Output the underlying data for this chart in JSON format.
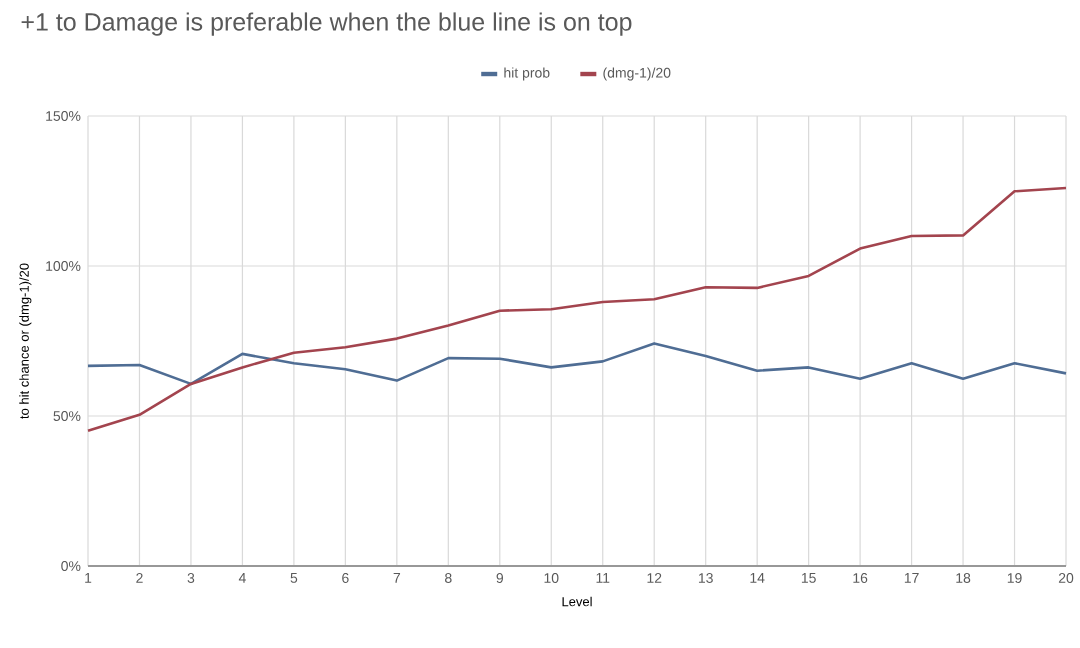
{
  "chart_data": {
    "type": "line",
    "title": "+1 to Damage is preferable when the blue line is on top",
    "xlabel": "Level",
    "ylabel": "to hit chance or (dmg-1)/20",
    "x": [
      1,
      2,
      3,
      4,
      5,
      6,
      7,
      8,
      9,
      10,
      11,
      12,
      13,
      14,
      15,
      16,
      17,
      18,
      19,
      20
    ],
    "series": [
      {
        "name": "hit prob",
        "color": "#4f6d94",
        "values": [
          66.7,
          67,
          60.7,
          70.7,
          67.6,
          65.6,
          61.8,
          69.3,
          69.1,
          66.2,
          68.2,
          74.2,
          70,
          65.1,
          66.2,
          62.4,
          67.6,
          62.4,
          67.6,
          64.2
        ]
      },
      {
        "name": "(dmg-1)/20",
        "color": "#a3444e",
        "values": [
          45.1,
          50.4,
          60.7,
          66.2,
          71.1,
          72.9,
          75.8,
          80.2,
          85.1,
          85.6,
          88,
          88.9,
          92.9,
          92.7,
          96.7,
          105.8,
          110,
          110.2,
          124.9,
          126
        ]
      }
    ],
    "xlim": [
      1,
      20
    ],
    "xticks": [
      1,
      2,
      3,
      4,
      5,
      6,
      7,
      8,
      9,
      10,
      11,
      12,
      13,
      14,
      15,
      16,
      17,
      18,
      19,
      20
    ],
    "ylim": [
      0,
      150
    ],
    "yticks": [
      {
        "value": 0,
        "label": "0%"
      },
      {
        "value": 50,
        "label": "50%"
      },
      {
        "value": 100,
        "label": "100%"
      },
      {
        "value": 150,
        "label": "150%"
      }
    ],
    "grid": true,
    "legend": "top",
    "marker": "none",
    "line_style": "solid"
  }
}
